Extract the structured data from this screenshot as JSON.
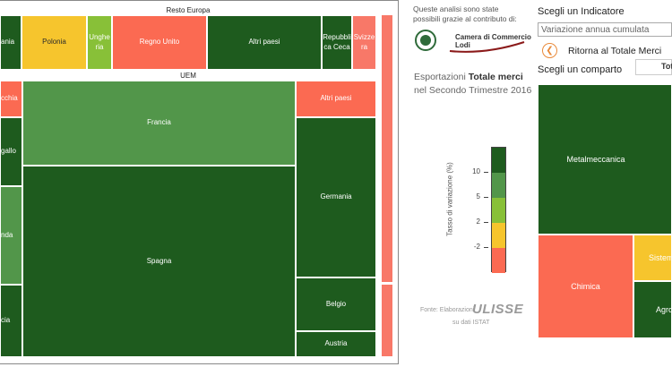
{
  "treemap": {
    "group_resto_europa": "Resto Europa",
    "group_uem": "UEM",
    "resto_europa_cells": [
      {
        "label": "ania",
        "color": "dark_green"
      },
      {
        "label": "Polonia",
        "color": "yellow"
      },
      {
        "label": "Unghe\nria",
        "color": "light_green"
      },
      {
        "label": "Regno Unito",
        "color": "red"
      },
      {
        "label": "Altri paesi",
        "color": "dark_green"
      },
      {
        "label": "Repubbli\nca Ceca",
        "color": "dark_green"
      },
      {
        "label": "Svizze\nra",
        "color": "pink"
      }
    ],
    "uem_cells": [
      {
        "label": "cchia",
        "color": "red"
      },
      {
        "label": "Francia",
        "color": "medium_green"
      },
      {
        "label": "Altri paesi",
        "color": "red"
      },
      {
        "label": "gallo",
        "color": "dark_green"
      },
      {
        "label": "Germania",
        "color": "dark_green"
      },
      {
        "label": "nda",
        "color": "medium_green"
      },
      {
        "label": "Spagna",
        "color": "dark_green"
      },
      {
        "label": "Belgio",
        "color": "dark_green"
      },
      {
        "label": "cia",
        "color": "dark_green"
      },
      {
        "label": "Austria",
        "color": "dark_green"
      }
    ]
  },
  "info": {
    "intro_line1": "Queste analisi sono state",
    "intro_line2": "possibili grazie al contributo di:",
    "logo_line1": "Camera di Commercio",
    "logo_line2": "Lodi",
    "subject_prefix": "Esportazioni",
    "subject_bold": "Totale merci",
    "subject_period": "nel Secondo Trimestre 2016"
  },
  "legend": {
    "axis_label": "Tasso di variazione (%)",
    "ticks": [
      "10",
      "5",
      "2",
      "-2"
    ],
    "colors": [
      "#1e5b1e",
      "#52964a",
      "#88c038",
      "#f6c52d",
      "#fb6a52"
    ]
  },
  "source": {
    "prefix": "Fonte: Elaborazioni",
    "brand": "ULISSE",
    "suffix": "su dati ISTAT"
  },
  "controls": {
    "indicator_title": "Scegli un Indicatore",
    "indicator_value": "Variazione annua cumulata",
    "back_label": "Ritorna al Totale Merci",
    "sector_title": "Scegli un comparto",
    "sector_value": "Tot"
  },
  "sectors": [
    {
      "label": "Metalmeccanica",
      "color": "dark_green"
    },
    {
      "label": "Chimica",
      "color": "red"
    },
    {
      "label": "Sistem",
      "color": "yellow"
    },
    {
      "label": "Agro",
      "color": "dark_green"
    }
  ]
}
